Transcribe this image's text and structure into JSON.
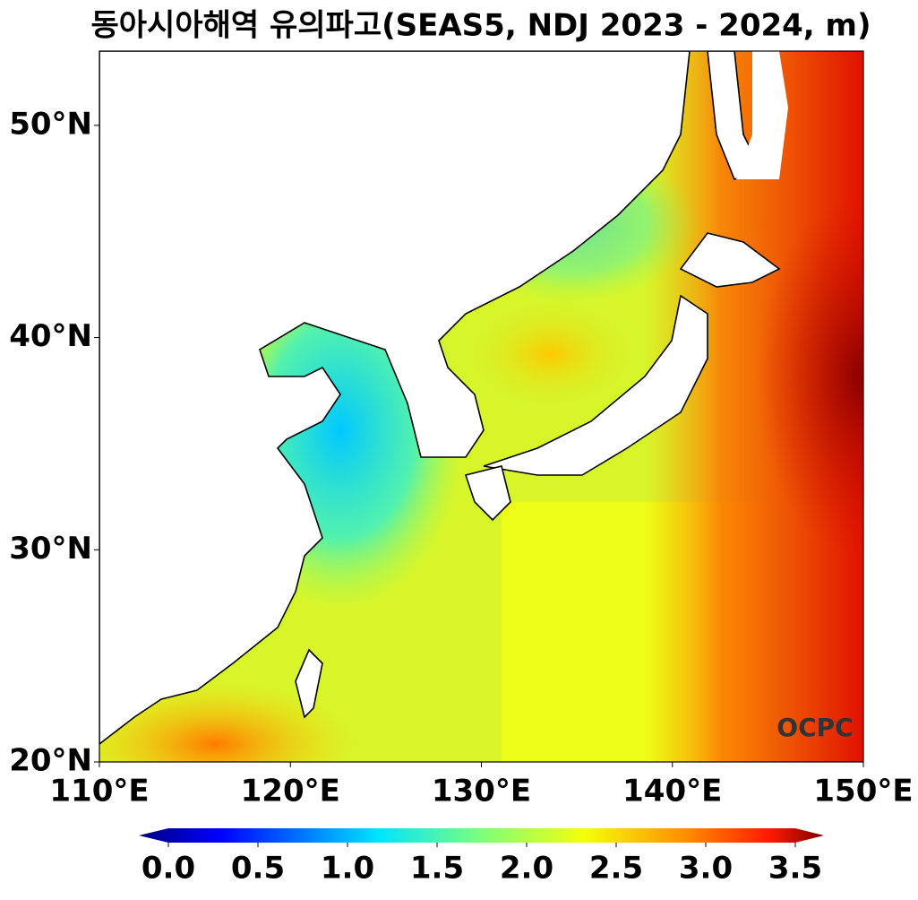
{
  "chart_data": {
    "type": "map",
    "title": "동아시아해역 유의파고(SEAS5, NDJ 2023 - 2024, m)",
    "xlim": [
      110,
      150
    ],
    "ylim": [
      20,
      53.5
    ],
    "xticks": [
      {
        "value": 110,
        "label": "110°E"
      },
      {
        "value": 120,
        "label": "120°E"
      },
      {
        "value": 130,
        "label": "130°E"
      },
      {
        "value": 140,
        "label": "140°E"
      },
      {
        "value": 150,
        "label": "150°E"
      }
    ],
    "yticks": [
      {
        "value": 20,
        "label": "20°N"
      },
      {
        "value": 30,
        "label": "30°N"
      },
      {
        "value": 40,
        "label": "40°N"
      },
      {
        "value": 50,
        "label": "50°N"
      }
    ],
    "colorbar": {
      "lim": [
        0,
        3.5
      ],
      "ticks": [
        {
          "value": 0,
          "label": "0.0"
        },
        {
          "value": 0.5,
          "label": "0.5"
        },
        {
          "value": 1,
          "label": "1.0"
        },
        {
          "value": 1.5,
          "label": "1.5"
        },
        {
          "value": 2,
          "label": "2.0"
        },
        {
          "value": 2.5,
          "label": "2.5"
        },
        {
          "value": 3,
          "label": "3.0"
        },
        {
          "value": 3.5,
          "label": "3.5"
        }
      ]
    },
    "watermark": "OCPC"
  }
}
